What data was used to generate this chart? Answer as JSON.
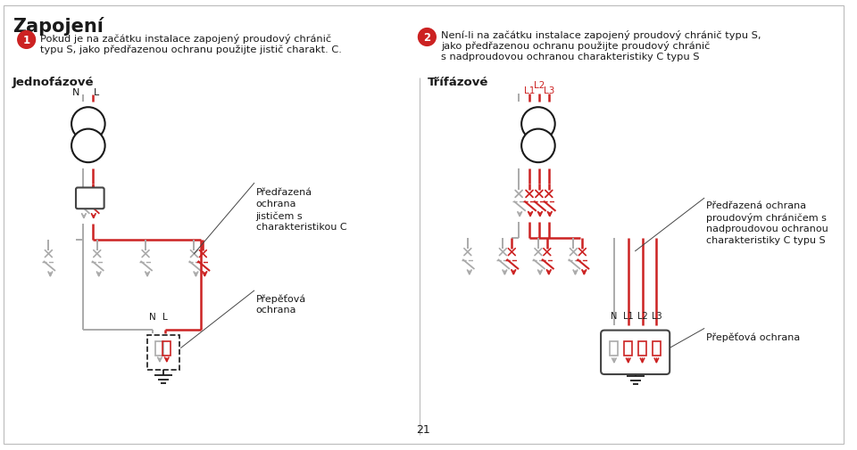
{
  "title": "Zapojení",
  "bg_color": "#ffffff",
  "text_color": "#1a1a1a",
  "red_color": "#cc2222",
  "gray_color": "#aaaaaa",
  "dark_gray": "#444444",
  "badge_color": "#cc2222",
  "section1_text_line1": "Pokud je na začátku instalace zapojený proudový chránič",
  "section1_text_line2": "typu S, jako předřazenou ochranu použijte jistič charakt. C.",
  "section2_text_line1": "Není-li na začátku instalace zapojený proudový chránič typu S,",
  "section2_text_line2": "jako předřazenou ochranu použijte proudový chránič",
  "section2_text_line3": "s nadproudovou ochranou charakteristiky C typu S",
  "label_single": "Jednofázové",
  "label_three": "Třífázové",
  "label_predrazena1_lines": [
    "Předřazená",
    "ochrana",
    "jističem s",
    "charakteristikou C"
  ],
  "label_prepetova1_lines": [
    "Přepěťová",
    "ochrana"
  ],
  "label_predrazena2_lines": [
    "Předřazená ochrana",
    "proudovým chráničem s",
    "nadproudovou ochranou",
    "charakteristiky C typu S"
  ],
  "label_prepetova2": "Přepěťová ochrana",
  "page_number": "21"
}
